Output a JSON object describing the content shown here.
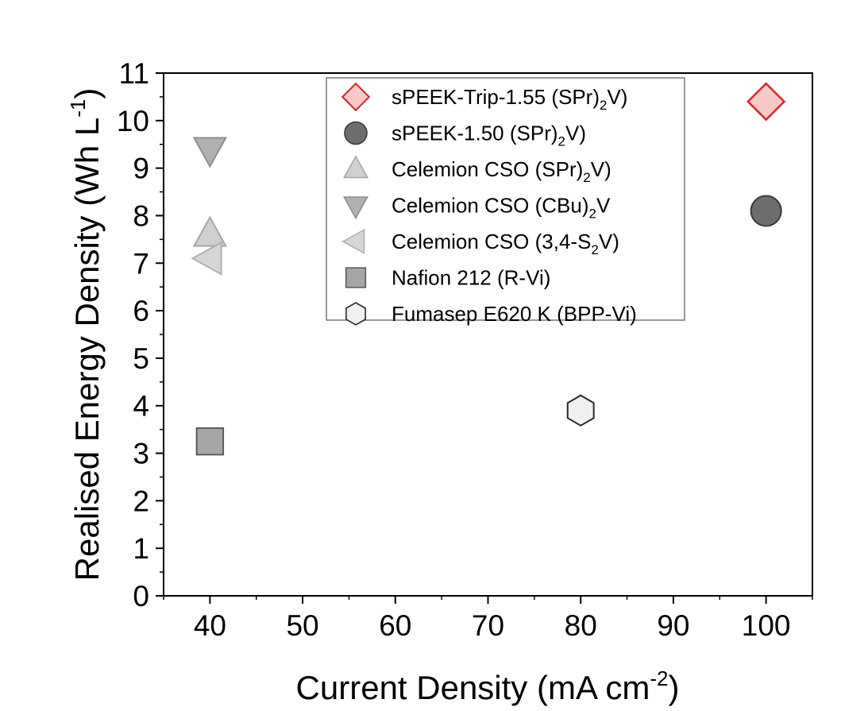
{
  "chart_data": {
    "type": "scatter",
    "title": "",
    "xlabel": "Current Density (mA cm",
    "xlabel_sup": "-2",
    "xlabel_end": ")",
    "ylabel": "Realised Energy Density (Wh L",
    "ylabel_sup": "-1",
    "ylabel_end": ")",
    "xlim": [
      35,
      105
    ],
    "ylim": [
      0,
      11
    ],
    "xticks": [
      40,
      50,
      60,
      70,
      80,
      90,
      100
    ],
    "yticks": [
      0,
      1,
      2,
      3,
      4,
      5,
      6,
      7,
      8,
      9,
      10,
      11
    ],
    "grid": false,
    "legend_position": "top-right",
    "series": [
      {
        "name": "sPEEK-Trip-1.55 (SPr)",
        "sub": "2",
        "tail": "V)",
        "marker": "diamond",
        "fill": "#f9c9c9",
        "stroke": "#d62728",
        "points": [
          {
            "x": 100,
            "y": 10.4
          }
        ]
      },
      {
        "name": "sPEEK-1.50 (SPr)",
        "sub": "2",
        "tail": "V)",
        "marker": "circle",
        "fill": "#6e6e6e",
        "stroke": "#3a3a3a",
        "points": [
          {
            "x": 100,
            "y": 8.1
          }
        ]
      },
      {
        "name": "Celemion CSO (SPr)",
        "sub": "2",
        "tail": "V)",
        "marker": "triangle-up",
        "fill": "#cfcfcf",
        "stroke": "#a8a8a8",
        "points": [
          {
            "x": 40,
            "y": 7.6
          }
        ]
      },
      {
        "name": "Celemion CSO  (CBu)",
        "sub": "2",
        "tail": "V",
        "marker": "triangle-down",
        "fill": "#b0b0b0",
        "stroke": "#8f8f8f",
        "points": [
          {
            "x": 40,
            "y": 9.4
          }
        ]
      },
      {
        "name": "Celemion CSO  (3,4-S",
        "sub": "2",
        "tail": "V)",
        "marker": "triangle-left",
        "fill": "#d6d6d6",
        "stroke": "#b0b0b0",
        "points": [
          {
            "x": 40,
            "y": 7.1
          }
        ]
      },
      {
        "name": "Nafion 212 (R-Vi)",
        "sub": "",
        "tail": "",
        "marker": "square",
        "fill": "#a6a6a6",
        "stroke": "#5a5a5a",
        "points": [
          {
            "x": 40,
            "y": 3.25
          }
        ]
      },
      {
        "name": "Fumasep E620 K (BPP-Vi)",
        "sub": "",
        "tail": "",
        "marker": "hexagon",
        "fill": "#f0f0f0",
        "stroke": "#2a2a2a",
        "points": [
          {
            "x": 80,
            "y": 3.9
          }
        ]
      }
    ]
  }
}
